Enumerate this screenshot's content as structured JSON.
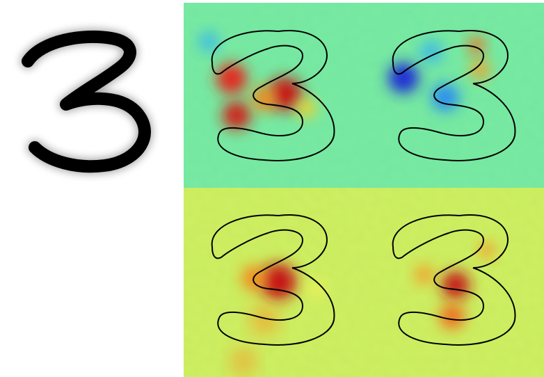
{
  "figure": {
    "digit": "3",
    "panels": [
      {
        "name": "panel-top-left"
      },
      {
        "name": "panel-top-right"
      },
      {
        "name": "panel-bottom-left"
      },
      {
        "name": "panel-bottom-right"
      }
    ],
    "colors": {
      "ink": "#000000",
      "map_background_cyan": "#4fe7bf",
      "map_background_yellow": "#e9f158",
      "heat_red": "#e4261d",
      "heat_darkred": "#9a0a0a",
      "heat_blue": "#1a2bd6"
    }
  }
}
